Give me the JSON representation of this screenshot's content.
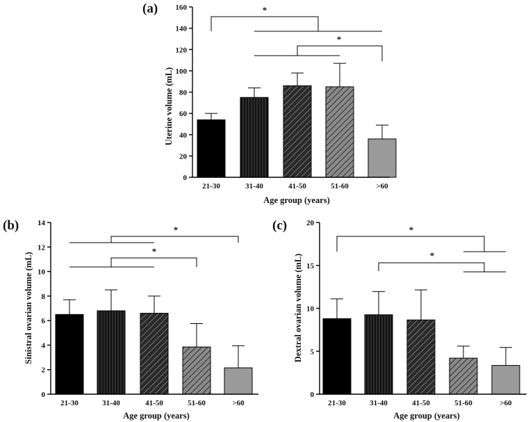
{
  "chart_data": [
    {
      "panel": "(a)",
      "type": "bar",
      "categories": [
        "21-30",
        "31-40",
        "41-50",
        "51-60",
        ">60"
      ],
      "values": [
        54,
        75,
        86,
        85,
        36
      ],
      "errors": [
        6,
        9,
        12,
        22,
        13
      ],
      "fills": [
        "solid-black",
        "vertical-lines",
        "diagonal-dark",
        "diagonal-light",
        "solid-gray"
      ],
      "xlabel": "Age group (years)",
      "ylabel": "Uterine volume (mL)",
      "ylim": [
        0,
        160
      ],
      "yticks": [
        0,
        20,
        40,
        60,
        80,
        100,
        120,
        140,
        160
      ],
      "significance": [
        {
          "groups": [
            [
              0
            ],
            [
              2,
              3,
              4
            ]
          ],
          "label": "*",
          "y_data": [
            140,
            148,
            136,
            147
          ]
        },
        {
          "groups": [
            [
              1,
              2,
              3
            ],
            [
              4
            ]
          ],
          "label": "*",
          "y_data": [
            114,
            120,
            109,
            120
          ]
        }
      ]
    },
    {
      "panel": "(b)",
      "type": "bar",
      "categories": [
        "21-30",
        "31-40",
        "41-50",
        "51-60",
        ">60"
      ],
      "values": [
        6.5,
        6.8,
        6.6,
        3.85,
        2.15
      ],
      "errors": [
        1.2,
        1.7,
        1.4,
        1.9,
        1.8
      ],
      "fills": [
        "solid-black",
        "vertical-lines",
        "diagonal-dark",
        "diagonal-light",
        "solid-gray"
      ],
      "xlabel": "Age group (years)",
      "ylabel": "Sinistral ovarian volume (mL)",
      "ylim": [
        0,
        14
      ],
      "yticks": [
        0,
        2,
        4,
        6,
        8,
        10,
        12,
        14
      ],
      "significance": [
        {
          "groups": [
            [
              0,
              1,
              2
            ],
            [
              4
            ]
          ],
          "label": "*",
          "y_data": [
            12.4,
            13.2,
            12.4,
            13.2
          ]
        },
        {
          "groups": [
            [
              0,
              1,
              2
            ],
            [
              3
            ]
          ],
          "label": "*",
          "y_data": [
            10.4,
            11.0,
            10.4,
            11.0
          ]
        }
      ]
    },
    {
      "panel": "(c)",
      "type": "bar",
      "categories": [
        "21-30",
        "31-40",
        "41-50",
        "51-60",
        ">60"
      ],
      "values": [
        8.8,
        9.25,
        8.65,
        4.2,
        3.35
      ],
      "errors": [
        2.3,
        2.7,
        3.5,
        1.4,
        2.1
      ],
      "fills": [
        "solid-black",
        "vertical-lines",
        "diagonal-dark",
        "diagonal-light",
        "solid-gray"
      ],
      "xlabel": "Age group (years)",
      "ylabel": "Dextral ovarian volume (mL)",
      "ylim": [
        0,
        20
      ],
      "yticks": [
        0,
        5,
        10,
        15,
        20
      ],
      "significance": [
        {
          "groups": [
            [
              0
            ],
            [
              3,
              4
            ]
          ],
          "label": "*",
          "y_data": [
            18.2,
            16.6,
            17.6
          ]
        },
        {
          "groups": [
            [
              1
            ],
            [
              3,
              4
            ]
          ],
          "label": "*",
          "y_data": [
            15.2,
            14.2,
            15.0
          ]
        }
      ]
    }
  ],
  "labels": {
    "a": "(a)",
    "b": "(b)",
    "c": "(c)"
  },
  "colors": {
    "solid_black": "#000000",
    "solid_gray": "#9a9a9a",
    "stroke": "#000000"
  }
}
